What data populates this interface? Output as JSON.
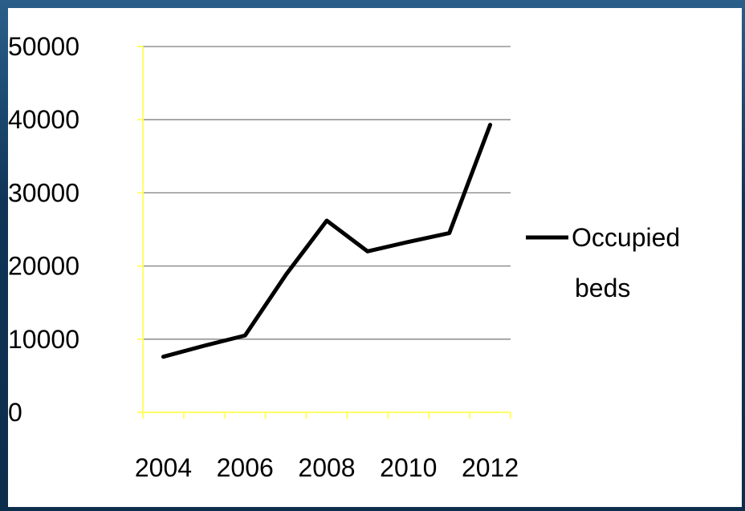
{
  "chart_data": {
    "type": "line",
    "title": "",
    "xlabel": "",
    "ylabel": "",
    "x": [
      2004,
      2005,
      2006,
      2007,
      2008,
      2009,
      2010,
      2011,
      2012
    ],
    "series": [
      {
        "name": "Occupied beds",
        "values": [
          7600,
          9100,
          10500,
          18800,
          26200,
          22000,
          23300,
          24500,
          39300
        ]
      }
    ],
    "ylim": [
      0,
      50000
    ],
    "yticks": [
      "0",
      "10000",
      "20000",
      "30000",
      "40000",
      "50000"
    ],
    "xtick_labels": [
      "2004",
      "2006",
      "2008",
      "2010",
      "2012"
    ],
    "grid": "horizontal",
    "legend_position": "right",
    "legend_lines": [
      "Occupied",
      "beds"
    ],
    "colors": {
      "line": "#000000",
      "axis": "#ffff66",
      "grid": "#808080",
      "frame": "#0f3457"
    }
  }
}
